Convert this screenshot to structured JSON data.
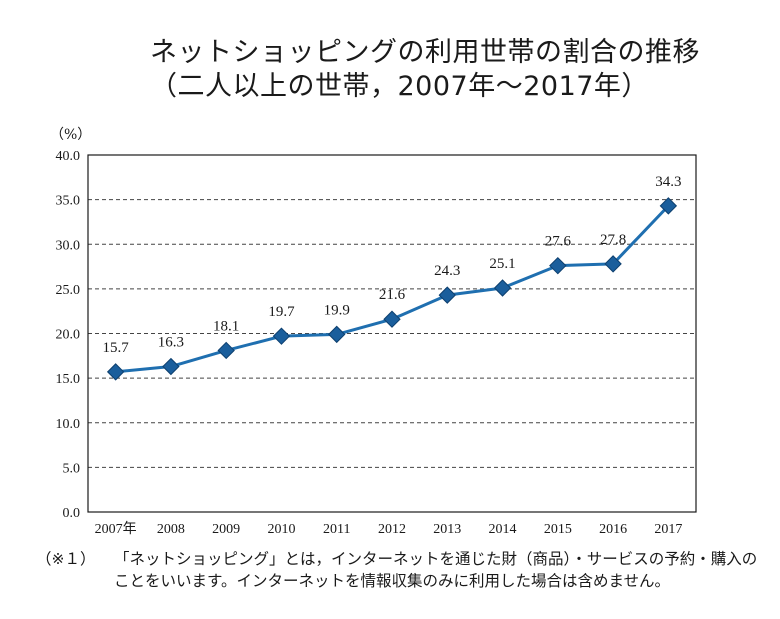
{
  "title": {
    "line1": "ネットショッピングの利用世帯の割合の推移",
    "line2": "（二人以上の世帯，2007年～2017年）"
  },
  "unit_label": "（%）",
  "note": {
    "mark": "（※１）",
    "text": "「ネットショッピング」とは，インターネットを通じた財（商品）・サービスの予約・購入のことをいいます。インターネットを情報収集のみに利用した場合は含めません。"
  },
  "colors": {
    "line": "#1f6fb0",
    "marker": "#1a5e9c",
    "grid": "#444444"
  },
  "chart_data": {
    "type": "line",
    "categories": [
      "2007年",
      "2008",
      "2009",
      "2010",
      "2011",
      "2012",
      "2013",
      "2014",
      "2015",
      "2016",
      "2017"
    ],
    "series": [
      {
        "values": [
          15.7,
          16.3,
          18.1,
          19.7,
          19.9,
          21.6,
          24.3,
          25.1,
          27.6,
          27.8,
          34.3
        ]
      }
    ],
    "data_labels": [
      "15.7",
      "16.3",
      "18.1",
      "19.7",
      "19.9",
      "21.6",
      "24.3",
      "25.1",
      "27.6",
      "27.8",
      "34.3"
    ],
    "yticks": [
      "0.0",
      "5.0",
      "10.0",
      "15.0",
      "20.0",
      "25.0",
      "30.0",
      "35.0",
      "40.0"
    ],
    "ylim": [
      0,
      40
    ],
    "ylabel": "（%）",
    "grid": "horizontal dashed",
    "marker": "diamond"
  }
}
